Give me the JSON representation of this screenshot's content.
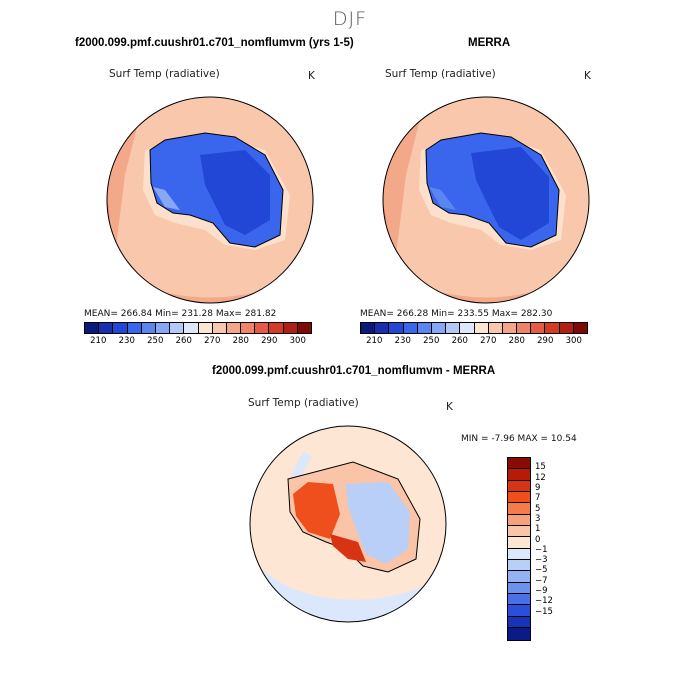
{
  "season": "DJF",
  "panels": {
    "top_left": {
      "title": "f2000.099.pmf.cuushr01.c701_nomflumvm (yrs 1-5)",
      "variable": "Surf Temp (radiative)",
      "units": "K",
      "stats": "MEAN= 266.84   Min= 231.28   Max= 281.82"
    },
    "top_right": {
      "title": "MERRA",
      "variable": "Surf Temp (radiative)",
      "units": "K",
      "stats": "MEAN= 266.28   Min= 233.55   Max= 282.30"
    },
    "bottom": {
      "title": "f2000.099.pmf.cuushr01.c701_nomflumvm - MERRA",
      "variable": "Surf Temp (radiative)",
      "units": "K",
      "stats": "MIN =   -7.96  MAX =   10.54"
    }
  },
  "abs_colorbar": {
    "tick_labels": [
      "210",
      "230",
      "250",
      "260",
      "270",
      "280",
      "290",
      "300"
    ],
    "colors": [
      "#0a1a7a",
      "#1a2fb0",
      "#2247d6",
      "#3a66ee",
      "#5a86f2",
      "#86a8f5",
      "#b5c9f7",
      "#dce7fa",
      "#fde5d6",
      "#f8c7ad",
      "#f4a68a",
      "#ef8268",
      "#e55b45",
      "#d43a26",
      "#b31e12",
      "#7d0a06"
    ]
  },
  "diff_colorbar": {
    "tick_labels": [
      "15",
      "12",
      "9",
      "7",
      "5",
      "3",
      "1",
      "0",
      "-1",
      "-3",
      "-5",
      "-7",
      "-9",
      "-12",
      "-15"
    ],
    "colors": [
      "#8a0a04",
      "#b81a0a",
      "#d83312",
      "#ee4f1c",
      "#f57a4c",
      "#f7a07c",
      "#f9c4a8",
      "#fde6d4",
      "#dbe8fb",
      "#b9cff7",
      "#93b2f2",
      "#6d91ee",
      "#4a70e8",
      "#2a4fdc",
      "#1733b8",
      "#0a1a86"
    ]
  }
}
